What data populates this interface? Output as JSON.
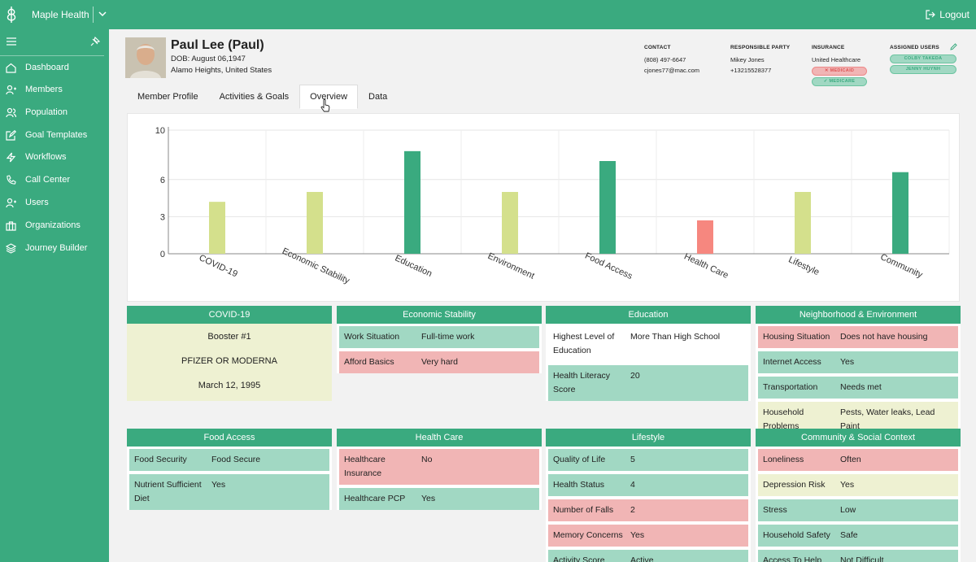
{
  "app": {
    "name": "Maple Health",
    "logout": "Logout"
  },
  "sidebar": {
    "items": [
      {
        "label": "Dashboard",
        "icon": "dashboard-icon"
      },
      {
        "label": "Members",
        "icon": "members-icon"
      },
      {
        "label": "Population",
        "icon": "population-icon"
      },
      {
        "label": "Goal Templates",
        "icon": "goal-templates-icon"
      },
      {
        "label": "Workflows",
        "icon": "workflows-icon"
      },
      {
        "label": "Call Center",
        "icon": "phone-icon"
      },
      {
        "label": "Users",
        "icon": "users-icon"
      },
      {
        "label": "Organizations",
        "icon": "organizations-icon"
      },
      {
        "label": "Journey Builder",
        "icon": "layers-icon"
      }
    ]
  },
  "member": {
    "name": "Paul Lee (Paul)",
    "dob": "DOB: August 06,1947",
    "location": "Alamo Heights, United States"
  },
  "contact": {
    "heading": "CONTACT",
    "phone": "(808) 497-6647",
    "email": "cjones77@mac.com"
  },
  "responsible": {
    "heading": "RESPONSIBLE PARTY",
    "name": "Mikey Jones",
    "phone": "+13215528377"
  },
  "insurance": {
    "heading": "INSURANCE",
    "provider": "United Healthcare",
    "badge1": "MEDICAID",
    "badge2": "MEDICARE"
  },
  "assigned": {
    "heading": "ASSIGNED USERS",
    "user1": "COLBY TAKEDA",
    "user2": "JENNY HUYNH"
  },
  "tabs": [
    "Member Profile",
    "Activities & Goals",
    "Overview",
    "Data"
  ],
  "chart_data": {
    "type": "bar",
    "categories": [
      "COVID-19",
      "Economic Stability",
      "Education",
      "Environment",
      "Food Access",
      "Health Care",
      "Lifestyle",
      "Community"
    ],
    "values": [
      4.2,
      5.0,
      8.3,
      5.0,
      7.5,
      2.7,
      5.0,
      6.6
    ],
    "colors": [
      "#d4e08c",
      "#d4e08c",
      "#3aaa7f",
      "#d4e08c",
      "#3aaa7f",
      "#f6877f",
      "#d4e08c",
      "#3aaa7f"
    ],
    "yticks": [
      0,
      3,
      6,
      10
    ],
    "ylim": [
      0,
      10
    ],
    "grid": true
  },
  "cards": {
    "covid": {
      "title": "COVID-19",
      "lines": [
        "Booster #1",
        "PFIZER OR MODERNA",
        "March 12, 1995"
      ]
    },
    "economic": {
      "title": "Economic Stability",
      "rows": [
        {
          "k": "Work Situation",
          "v": "Full-time work",
          "c": "green"
        },
        {
          "k": "Afford Basics",
          "v": "Very hard",
          "c": "red"
        }
      ]
    },
    "education": {
      "title": "Education",
      "rows": [
        {
          "k": "Highest Level of Education",
          "v": "More Than High School",
          "c": "white"
        },
        {
          "k": "Health Literacy Score",
          "v": "20",
          "c": "green"
        }
      ]
    },
    "neighborhood": {
      "title": "Neighborhood & Environment",
      "rows": [
        {
          "k": "Housing Situation",
          "v": "Does not have housing",
          "c": "red"
        },
        {
          "k": "Internet Access",
          "v": "Yes",
          "c": "green"
        },
        {
          "k": "Transportation",
          "v": "Needs met",
          "c": "green"
        },
        {
          "k": "Household Problems",
          "v": "Pests, Water leaks, Lead Paint",
          "c": "yellow"
        }
      ]
    },
    "food": {
      "title": "Food Access",
      "rows": [
        {
          "k": "Food Security",
          "v": "Food Secure",
          "c": "green"
        },
        {
          "k": "Nutrient Sufficient Diet",
          "v": "Yes",
          "c": "green"
        }
      ]
    },
    "healthcare": {
      "title": "Health Care",
      "rows": [
        {
          "k": "Healthcare Insurance",
          "v": "No",
          "c": "red"
        },
        {
          "k": "Healthcare PCP",
          "v": "Yes",
          "c": "green"
        }
      ]
    },
    "lifestyle": {
      "title": "Lifestyle",
      "rows": [
        {
          "k": "Quality of Life",
          "v": "5",
          "c": "green"
        },
        {
          "k": "Health Status",
          "v": "4",
          "c": "green"
        },
        {
          "k": "Number of Falls",
          "v": "2",
          "c": "red"
        },
        {
          "k": "Memory Concerns",
          "v": "Yes",
          "c": "red"
        },
        {
          "k": "Activity Score",
          "v": "Active",
          "c": "green"
        }
      ]
    },
    "community": {
      "title": "Community & Social Context",
      "rows": [
        {
          "k": "Loneliness",
          "v": "Often",
          "c": "red"
        },
        {
          "k": "Depression Risk",
          "v": "Yes",
          "c": "yellow"
        },
        {
          "k": "Stress",
          "v": "Low",
          "c": "green"
        },
        {
          "k": "Household Safety",
          "v": "Safe",
          "c": "green"
        },
        {
          "k": "Access To Help",
          "v": "Not Difficult",
          "c": "green"
        }
      ]
    }
  }
}
